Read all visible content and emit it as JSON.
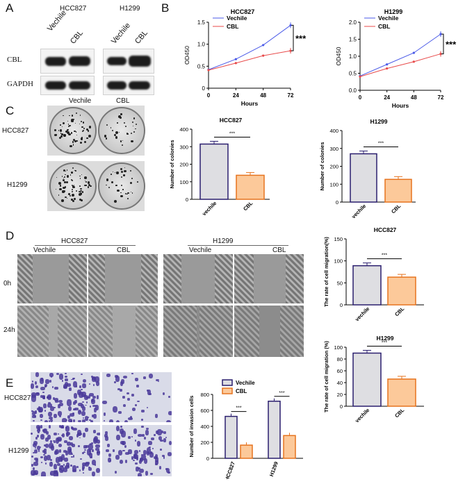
{
  "panels": {
    "A": "A",
    "B": "B",
    "C": "C",
    "D": "D",
    "E": "E"
  },
  "panelA": {
    "cell_lines": [
      "HCC827",
      "H1299"
    ],
    "conditions": [
      "Vechile",
      "CBL"
    ],
    "rows": [
      "CBL",
      "GAPDH"
    ]
  },
  "panelC": {
    "conditions": [
      "Vechile",
      "CBL"
    ],
    "rows": [
      "HCC827",
      "H1299"
    ]
  },
  "panelD": {
    "cell_lines": [
      "HCC827",
      "H1299"
    ],
    "conditions": [
      "Vechile",
      "CBL"
    ],
    "times": [
      "0h",
      "24h"
    ]
  },
  "panelE": {
    "rows": [
      "HCC827",
      "H1299"
    ]
  },
  "colors": {
    "vehicle_line": "#4a5ae8",
    "cbl_line": "#e84a4a",
    "bar_gray": "#dedee2",
    "bar_gray_edge": "#2a1e6e",
    "bar_orange": "#fcc99a",
    "bar_orange_edge": "#e6731e"
  },
  "chart_data": [
    {
      "id": "curve-hcc827",
      "type": "line",
      "title": "HCC827",
      "xlabel": "Hours",
      "ylabel": "OD450",
      "x": [
        0,
        24,
        48,
        72
      ],
      "ylim": [
        0,
        1.5
      ],
      "yticks": [
        "0",
        "0.5",
        "1.0",
        "1.5"
      ],
      "series": [
        {
          "name": "Vechile",
          "values": [
            0.42,
            0.66,
            0.98,
            1.43
          ]
        },
        {
          "name": "CBL",
          "values": [
            0.41,
            0.57,
            0.74,
            0.85
          ]
        }
      ],
      "annotation": "***"
    },
    {
      "id": "curve-h1299",
      "type": "line",
      "title": "H1299",
      "xlabel": "Hours",
      "ylabel": "OD450",
      "x": [
        0,
        24,
        48,
        72
      ],
      "ylim": [
        0,
        2.0
      ],
      "yticks": [
        "0.0",
        "0.5",
        "1.0",
        "1.5",
        "2.0"
      ],
      "series": [
        {
          "name": "Vechile",
          "values": [
            0.42,
            0.76,
            1.1,
            1.65
          ]
        },
        {
          "name": "CBL",
          "values": [
            0.4,
            0.64,
            0.84,
            1.07
          ]
        }
      ],
      "annotation": "***"
    },
    {
      "id": "colonies-hcc827",
      "type": "bar",
      "title": "HCC827",
      "ylabel": "Number of colonies",
      "categories": [
        "vechile",
        "CBL"
      ],
      "values": [
        315,
        137
      ],
      "ylim": [
        0,
        400
      ],
      "yticks": [
        "0",
        "100",
        "200",
        "300",
        "400"
      ],
      "annotation": "***"
    },
    {
      "id": "colonies-h1299",
      "type": "bar",
      "title": "H1299",
      "ylabel": "Number of colonies",
      "categories": [
        "vechile",
        "CBL"
      ],
      "values": [
        270,
        127
      ],
      "ylim": [
        0,
        400
      ],
      "yticks": [
        "0",
        "100",
        "200",
        "300",
        "400"
      ],
      "annotation": "***"
    },
    {
      "id": "migration-hcc827",
      "type": "bar",
      "title": "HCC827",
      "ylabel": "The rate of cell migration(%)",
      "categories": [
        "vechile",
        "CBL"
      ],
      "values": [
        89,
        63
      ],
      "ylim": [
        0,
        150
      ],
      "yticks": [
        "0",
        "50",
        "100",
        "150"
      ],
      "annotation": "***"
    },
    {
      "id": "migration-h1299",
      "type": "bar",
      "title": "H1299",
      "ylabel": "The rate of cell migration (%)",
      "categories": [
        "vechile",
        "CBL"
      ],
      "values": [
        90,
        46
      ],
      "ylim": [
        0,
        100
      ],
      "yticks": [
        "0",
        "20",
        "40",
        "60",
        "80",
        "100"
      ],
      "annotation": "***"
    },
    {
      "id": "invasion",
      "type": "bar",
      "title": "",
      "ylabel": "Number of invasion cells",
      "categories": [
        "HCC827",
        "H1299"
      ],
      "series": [
        {
          "name": "Vechile",
          "values": [
            525,
            715
          ]
        },
        {
          "name": "CBL",
          "values": [
            165,
            285
          ]
        }
      ],
      "ylim": [
        0,
        800
      ],
      "yticks": [
        "0",
        "200",
        "400",
        "600",
        "800"
      ],
      "annotation": "***"
    }
  ]
}
